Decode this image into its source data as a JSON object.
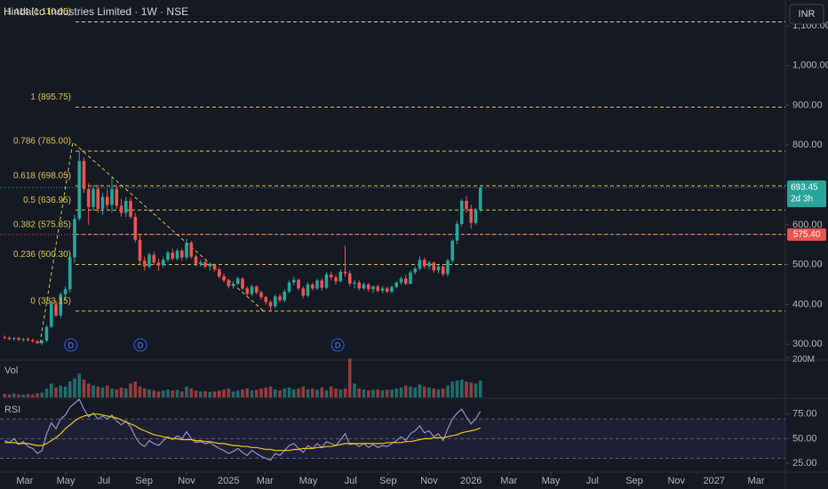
{
  "chart_data": {
    "type": "candlestick",
    "title": "Hindalco Industries Limited · 1W · NSE",
    "currency": "INR",
    "up_color": "#26a69a",
    "down_color": "#ef5350",
    "candles": [
      [
        318,
        322,
        312,
        316
      ],
      [
        316,
        320,
        310,
        313
      ],
      [
        313,
        318,
        308,
        315
      ],
      [
        315,
        319,
        309,
        311
      ],
      [
        311,
        316,
        306,
        313
      ],
      [
        313,
        317,
        307,
        310
      ],
      [
        310,
        314,
        304,
        307
      ],
      [
        307,
        312,
        300,
        303
      ],
      [
        303,
        312,
        298,
        309
      ],
      [
        309,
        348,
        305,
        344
      ],
      [
        344,
        410,
        340,
        402
      ],
      [
        400,
        410,
        368,
        372
      ],
      [
        372,
        430,
        365,
        425
      ],
      [
        425,
        445,
        410,
        438
      ],
      [
        438,
        525,
        430,
        518
      ],
      [
        518,
        625,
        505,
        615
      ],
      [
        615,
        785,
        610,
        760
      ],
      [
        760,
        770,
        680,
        690
      ],
      [
        690,
        705,
        600,
        645
      ],
      [
        645,
        700,
        635,
        690
      ],
      [
        690,
        700,
        630,
        640
      ],
      [
        640,
        680,
        625,
        670
      ],
      [
        670,
        690,
        640,
        650
      ],
      [
        650,
        718,
        630,
        690
      ],
      [
        690,
        700,
        640,
        648
      ],
      [
        648,
        665,
        620,
        630
      ],
      [
        630,
        670,
        620,
        660
      ],
      [
        660,
        668,
        615,
        620
      ],
      [
        620,
        630,
        555,
        562
      ],
      [
        562,
        575,
        500,
        510
      ],
      [
        510,
        520,
        485,
        495
      ],
      [
        495,
        530,
        490,
        525
      ],
      [
        525,
        532,
        500,
        505
      ],
      [
        505,
        515,
        485,
        498
      ],
      [
        498,
        520,
        492,
        512
      ],
      [
        512,
        535,
        505,
        530
      ],
      [
        530,
        540,
        510,
        515
      ],
      [
        515,
        540,
        510,
        535
      ],
      [
        535,
        540,
        510,
        518
      ],
      [
        518,
        565,
        512,
        555
      ],
      [
        555,
        560,
        515,
        520
      ],
      [
        520,
        525,
        495,
        502
      ],
      [
        502,
        512,
        495,
        506
      ],
      [
        506,
        510,
        490,
        495
      ],
      [
        495,
        505,
        485,
        500
      ],
      [
        500,
        503,
        482,
        488
      ],
      [
        488,
        492,
        465,
        470
      ],
      [
        470,
        478,
        455,
        460
      ],
      [
        460,
        465,
        440,
        446
      ],
      [
        446,
        458,
        440,
        452
      ],
      [
        452,
        470,
        448,
        465
      ],
      [
        465,
        468,
        435,
        440
      ],
      [
        440,
        445,
        420,
        426
      ],
      [
        426,
        450,
        420,
        445
      ],
      [
        445,
        448,
        425,
        430
      ],
      [
        430,
        435,
        412,
        418
      ],
      [
        418,
        422,
        400,
        406
      ],
      [
        406,
        410,
        385,
        395
      ],
      [
        395,
        425,
        390,
        420
      ],
      [
        420,
        426,
        405,
        410
      ],
      [
        410,
        438,
        405,
        432
      ],
      [
        432,
        460,
        428,
        455
      ],
      [
        455,
        470,
        448,
        462
      ],
      [
        462,
        465,
        435,
        440
      ],
      [
        440,
        445,
        415,
        422
      ],
      [
        422,
        455,
        418,
        450
      ],
      [
        450,
        455,
        435,
        440
      ],
      [
        440,
        465,
        436,
        460
      ],
      [
        460,
        466,
        435,
        442
      ],
      [
        442,
        480,
        438,
        475
      ],
      [
        475,
        482,
        460,
        468
      ],
      [
        468,
        474,
        450,
        458
      ],
      [
        458,
        488,
        455,
        482
      ],
      [
        482,
        548,
        470,
        478
      ],
      [
        478,
        485,
        445,
        452
      ],
      [
        452,
        462,
        440,
        455
      ],
      [
        455,
        460,
        435,
        440
      ],
      [
        440,
        455,
        436,
        450
      ],
      [
        450,
        454,
        432,
        438
      ],
      [
        438,
        448,
        428,
        445
      ],
      [
        445,
        450,
        430,
        434
      ],
      [
        434,
        446,
        428,
        440
      ],
      [
        440,
        445,
        428,
        432
      ],
      [
        432,
        448,
        428,
        444
      ],
      [
        444,
        458,
        440,
        455
      ],
      [
        455,
        470,
        450,
        465
      ],
      [
        465,
        475,
        448,
        452
      ],
      [
        452,
        485,
        450,
        480
      ],
      [
        480,
        495,
        475,
        490
      ],
      [
        490,
        520,
        485,
        512
      ],
      [
        512,
        518,
        490,
        496
      ],
      [
        496,
        510,
        488,
        505
      ],
      [
        505,
        508,
        480,
        486
      ],
      [
        486,
        500,
        478,
        495
      ],
      [
        495,
        498,
        470,
        476
      ],
      [
        476,
        515,
        470,
        510
      ],
      [
        510,
        565,
        505,
        560
      ],
      [
        560,
        610,
        552,
        602
      ],
      [
        602,
        665,
        595,
        660
      ],
      [
        660,
        672,
        630,
        640
      ],
      [
        640,
        650,
        590,
        605
      ],
      [
        605,
        642,
        600,
        638
      ],
      [
        638,
        700,
        632,
        693.45
      ]
    ],
    "xlim": [
      -1,
      167
    ],
    "xticks": [
      {
        "value": 4.3,
        "label": "Mar"
      },
      {
        "value": 13.1,
        "label": "May"
      },
      {
        "value": 21.3,
        "label": "Jul"
      },
      {
        "value": 29.9,
        "label": "Sep"
      },
      {
        "value": 39,
        "label": "Nov"
      },
      {
        "value": 48,
        "label": "2025"
      },
      {
        "value": 55.8,
        "label": "Mar"
      },
      {
        "value": 65.1,
        "label": "May"
      },
      {
        "value": 74.2,
        "label": "Jul"
      },
      {
        "value": 82.2,
        "label": "Sep"
      },
      {
        "value": 91,
        "label": "Nov"
      },
      {
        "value": 100,
        "label": "2026"
      },
      {
        "value": 108.1,
        "label": "Mar"
      },
      {
        "value": 117.1,
        "label": "May"
      },
      {
        "value": 126,
        "label": "Jul"
      },
      {
        "value": 135,
        "label": "Sep"
      },
      {
        "value": 144,
        "label": "Nov"
      },
      {
        "value": 152.1,
        "label": "2027"
      },
      {
        "value": 161.1,
        "label": "Mar"
      }
    ],
    "ylim": [
      260,
      1165
    ],
    "yticks": [
      {
        "value": 300,
        "label": "300.00"
      },
      {
        "value": 400,
        "label": "400.00"
      },
      {
        "value": 500,
        "label": "500.00"
      },
      {
        "value": 600,
        "label": "600.00"
      },
      {
        "value": 700,
        "label": "700.00"
      },
      {
        "value": 800,
        "label": "800.00"
      },
      {
        "value": 900,
        "label": "900.00"
      },
      {
        "value": 1000,
        "label": "1,000.00"
      },
      {
        "value": 1100,
        "label": "1,100.00"
      }
    ],
    "fib_color": "#d9c54a",
    "fib_levels": [
      {
        "value": 383.15,
        "label": "0 (383.15)"
      },
      {
        "value": 500.3,
        "label": "0.236 (500.30)"
      },
      {
        "value": 575.85,
        "label": "0.382 (575.85)"
      },
      {
        "value": 636.95,
        "label": "0.5 (636.95)"
      },
      {
        "value": 698.05,
        "label": "0.618 (698.05)"
      },
      {
        "value": 785,
        "label": "0.786 (785.00)"
      },
      {
        "value": 895.75,
        "label": "1 (895.75)"
      },
      {
        "value": 1110.05,
        "label": "1.414 (1,110.05)"
      }
    ],
    "last_price_countdown": "2d 3h",
    "ref_line": {
      "value": 575.4,
      "label": "575.40"
    },
    "events": [
      {
        "x": 14.2,
        "label": "D"
      },
      {
        "x": 29.1,
        "label": "D"
      },
      {
        "x": 71.4,
        "label": "D"
      }
    ],
    "volume": {
      "label": "Vol",
      "ylim": [
        0,
        210
      ],
      "yticks": [
        {
          "value": 200,
          "label": "200M"
        }
      ],
      "values": [
        18,
        15,
        20,
        16,
        14,
        17,
        15,
        22,
        25,
        45,
        70,
        50,
        60,
        55,
        80,
        95,
        120,
        90,
        70,
        60,
        55,
        50,
        60,
        45,
        40,
        50,
        45,
        70,
        80,
        55,
        45,
        40,
        35,
        30,
        35,
        40,
        35,
        38,
        30,
        55,
        45,
        35,
        30,
        32,
        28,
        30,
        35,
        40,
        45,
        30,
        35,
        40,
        45,
        35,
        38,
        45,
        50,
        55,
        40,
        35,
        45,
        50,
        40,
        45,
        55,
        40,
        45,
        38,
        50,
        35,
        55,
        45,
        40,
        45,
        195,
        70,
        45,
        40,
        35,
        38,
        40,
        35,
        38,
        40,
        45,
        50,
        60,
        55,
        50,
        65,
        55,
        50,
        45,
        40,
        45,
        60,
        80,
        85,
        90,
        80,
        75,
        70,
        85
      ]
    },
    "rsi": {
      "label": "RSI",
      "color": "#9a8fc8",
      "ma_color": "#f0c419",
      "ylim": [
        16,
        91
      ],
      "yticks": [
        {
          "value": 75,
          "label": "75.00"
        },
        {
          "value": 50,
          "label": "50.00"
        },
        {
          "value": 25,
          "label": "25.00"
        }
      ],
      "bands": [
        70,
        50,
        30
      ],
      "values": [
        48,
        46,
        50,
        44,
        47,
        42,
        40,
        35,
        38,
        55,
        66,
        60,
        70,
        74,
        82,
        86,
        90,
        80,
        72,
        76,
        70,
        73,
        70,
        74,
        68,
        64,
        68,
        62,
        52,
        45,
        42,
        48,
        45,
        43,
        48,
        52,
        49,
        53,
        50,
        57,
        50,
        46,
        47,
        45,
        46,
        43,
        40,
        38,
        35,
        37,
        40,
        36,
        33,
        38,
        35,
        32,
        30,
        28,
        35,
        33,
        38,
        43,
        45,
        40,
        36,
        43,
        40,
        45,
        41,
        47,
        45,
        43,
        49,
        55,
        44,
        45,
        42,
        45,
        41,
        44,
        41,
        43,
        42,
        45,
        48,
        52,
        48,
        55,
        58,
        63,
        56,
        58,
        52,
        55,
        48,
        60,
        70,
        76,
        80,
        72,
        65,
        70,
        78
      ],
      "ma": [
        46,
        46,
        46,
        45,
        45,
        45,
        44,
        43,
        43,
        45,
        48,
        51,
        55,
        60,
        64,
        68,
        71,
        73,
        74,
        75,
        75,
        74,
        73,
        72,
        71,
        69,
        67,
        65,
        63,
        60,
        58,
        56,
        54,
        53,
        52,
        51,
        50,
        50,
        49,
        49,
        49,
        48,
        48,
        47,
        47,
        46,
        45,
        45,
        44,
        43,
        43,
        42,
        42,
        41,
        41,
        40,
        39,
        39,
        38,
        38,
        38,
        38,
        39,
        39,
        40,
        40,
        40,
        41,
        41,
        42,
        42,
        43,
        44,
        45,
        45,
        45,
        45,
        45,
        45,
        45,
        45,
        45,
        46,
        46,
        46,
        46,
        47,
        47,
        48,
        49,
        50,
        50,
        51,
        51,
        51,
        52,
        53,
        54,
        56,
        57,
        58,
        59,
        61
      ]
    }
  }
}
